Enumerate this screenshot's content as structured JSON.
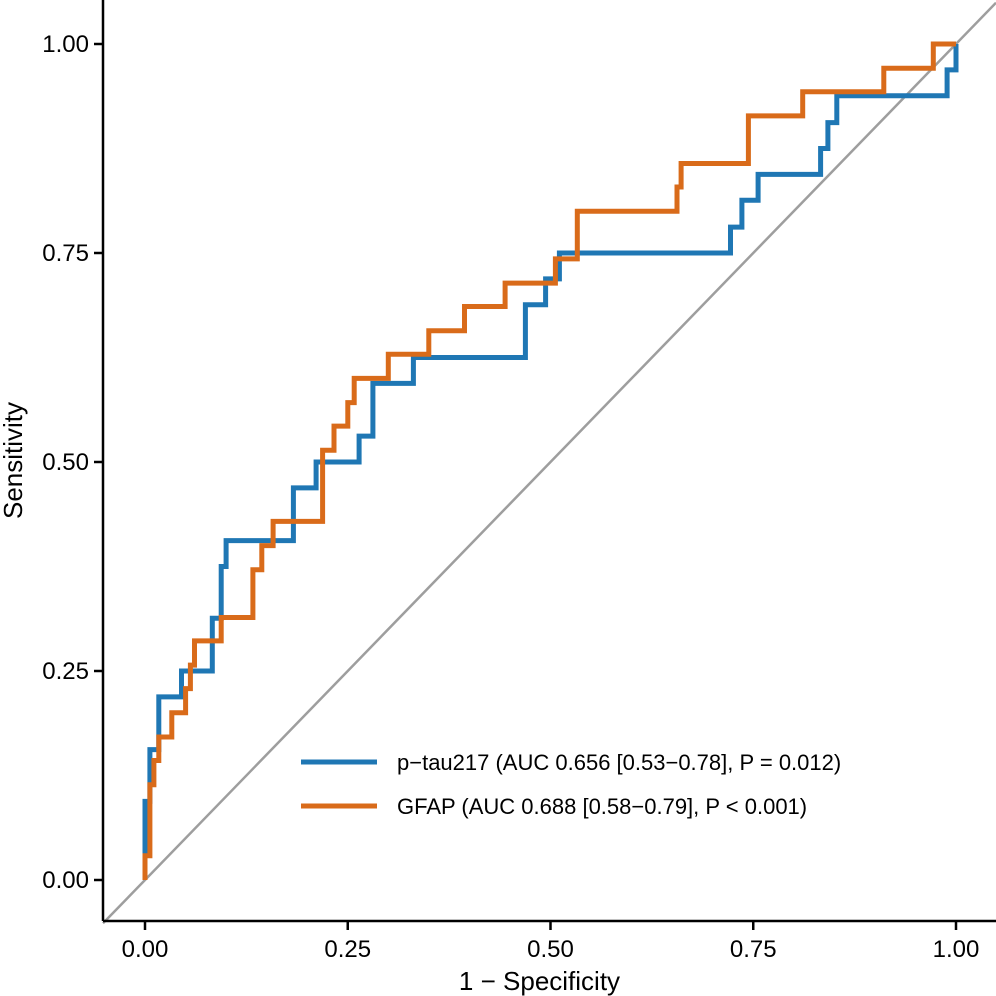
{
  "chart_data": {
    "type": "line",
    "title": "",
    "xlabel": "1 − Specificity",
    "ylabel": "Sensitivity",
    "xlim": [
      0,
      1
    ],
    "ylim": [
      0,
      1
    ],
    "x_ticks": [
      "0.00",
      "0.25",
      "0.50",
      "0.75",
      "1.00"
    ],
    "y_ticks": [
      "0.00",
      "0.25",
      "0.50",
      "0.75",
      "1.00"
    ],
    "grid": false,
    "legend_position": "bottom-right",
    "reference_line": {
      "from": [
        0,
        0
      ],
      "to": [
        1,
        1
      ],
      "color": "#9e9e9e"
    },
    "series": [
      {
        "name": "p−tau217 (AUC 0.656 [0.53−0.78], P = 0.012)",
        "color": "#1f77b4",
        "points": [
          [
            0,
            0
          ],
          [
            0,
            0.031
          ],
          [
            0,
            0.094
          ],
          [
            0.006,
            0.094
          ],
          [
            0.006,
            0.156
          ],
          [
            0.017,
            0.156
          ],
          [
            0.017,
            0.219
          ],
          [
            0.045,
            0.219
          ],
          [
            0.045,
            0.25
          ],
          [
            0.083,
            0.25
          ],
          [
            0.083,
            0.313
          ],
          [
            0.094,
            0.313
          ],
          [
            0.094,
            0.375
          ],
          [
            0.1,
            0.375
          ],
          [
            0.1,
            0.406
          ],
          [
            0.183,
            0.406
          ],
          [
            0.183,
            0.469
          ],
          [
            0.211,
            0.469
          ],
          [
            0.211,
            0.5
          ],
          [
            0.264,
            0.5
          ],
          [
            0.264,
            0.531
          ],
          [
            0.281,
            0.531
          ],
          [
            0.281,
            0.594
          ],
          [
            0.331,
            0.594
          ],
          [
            0.331,
            0.625
          ],
          [
            0.469,
            0.625
          ],
          [
            0.469,
            0.688
          ],
          [
            0.494,
            0.688
          ],
          [
            0.494,
            0.719
          ],
          [
            0.511,
            0.719
          ],
          [
            0.511,
            0.75
          ],
          [
            0.722,
            0.75
          ],
          [
            0.722,
            0.781
          ],
          [
            0.736,
            0.781
          ],
          [
            0.736,
            0.813
          ],
          [
            0.756,
            0.813
          ],
          [
            0.756,
            0.844
          ],
          [
            0.833,
            0.844
          ],
          [
            0.833,
            0.875
          ],
          [
            0.842,
            0.875
          ],
          [
            0.842,
            0.906
          ],
          [
            0.853,
            0.906
          ],
          [
            0.853,
            0.938
          ],
          [
            0.989,
            0.938
          ],
          [
            0.989,
            0.969
          ],
          [
            1.0,
            0.969
          ],
          [
            1.0,
            1.0
          ]
        ]
      },
      {
        "name": "GFAP (AUC 0.688 [0.58−0.79], P < 0.001)",
        "color": "#d96b1a",
        "points": [
          [
            0,
            0
          ],
          [
            0,
            0.029
          ],
          [
            0.006,
            0.029
          ],
          [
            0.006,
            0.114
          ],
          [
            0.011,
            0.114
          ],
          [
            0.011,
            0.143
          ],
          [
            0.017,
            0.143
          ],
          [
            0.017,
            0.171
          ],
          [
            0.033,
            0.171
          ],
          [
            0.033,
            0.2
          ],
          [
            0.05,
            0.2
          ],
          [
            0.05,
            0.229
          ],
          [
            0.056,
            0.229
          ],
          [
            0.056,
            0.257
          ],
          [
            0.061,
            0.257
          ],
          [
            0.061,
            0.286
          ],
          [
            0.094,
            0.286
          ],
          [
            0.094,
            0.314
          ],
          [
            0.133,
            0.314
          ],
          [
            0.133,
            0.371
          ],
          [
            0.144,
            0.371
          ],
          [
            0.144,
            0.4
          ],
          [
            0.158,
            0.4
          ],
          [
            0.158,
            0.429
          ],
          [
            0.219,
            0.429
          ],
          [
            0.219,
            0.514
          ],
          [
            0.233,
            0.514
          ],
          [
            0.233,
            0.543
          ],
          [
            0.25,
            0.543
          ],
          [
            0.25,
            0.571
          ],
          [
            0.258,
            0.571
          ],
          [
            0.258,
            0.6
          ],
          [
            0.3,
            0.6
          ],
          [
            0.3,
            0.629
          ],
          [
            0.35,
            0.629
          ],
          [
            0.35,
            0.657
          ],
          [
            0.394,
            0.657
          ],
          [
            0.394,
            0.686
          ],
          [
            0.444,
            0.686
          ],
          [
            0.444,
            0.714
          ],
          [
            0.506,
            0.714
          ],
          [
            0.506,
            0.743
          ],
          [
            0.533,
            0.743
          ],
          [
            0.533,
            0.8
          ],
          [
            0.656,
            0.8
          ],
          [
            0.656,
            0.829
          ],
          [
            0.661,
            0.829
          ],
          [
            0.661,
            0.857
          ],
          [
            0.744,
            0.857
          ],
          [
            0.744,
            0.914
          ],
          [
            0.811,
            0.914
          ],
          [
            0.811,
            0.943
          ],
          [
            0.911,
            0.943
          ],
          [
            0.911,
            0.971
          ],
          [
            0.972,
            0.971
          ],
          [
            0.972,
            1.0
          ],
          [
            1.0,
            1.0
          ]
        ]
      }
    ]
  }
}
